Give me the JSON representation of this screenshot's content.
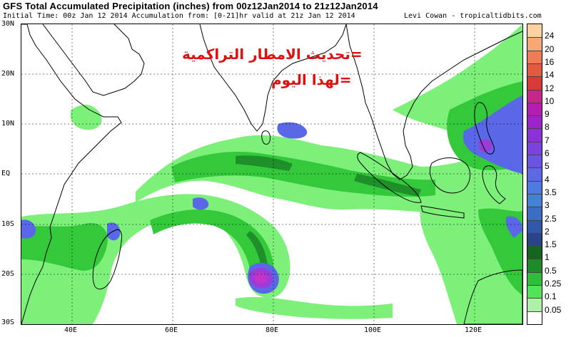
{
  "header": {
    "title": "GFS Total Accumulated Precipitation (inches) from 00z12Jan2014 to 21z12Jan2014",
    "subtitle": "Initial Time: 00z Jan 12 2014 Accumulation from: [0-21]hr valid at 21z Jan 12 2014",
    "credit": "Levi Cowan - tropicaltidbits.com"
  },
  "overlay_text": {
    "line1": "=تحديث الامطار التراكمية",
    "line2": "=لهذا اليوم"
  },
  "axes": {
    "lat_labels": [
      "30N",
      "20N",
      "10N",
      "EQ",
      "10S",
      "20S",
      "30S"
    ],
    "lon_labels": [
      "40E",
      "60E",
      "80E",
      "100E",
      "120E"
    ]
  },
  "colorbar": {
    "labels": [
      "24",
      "20",
      "16",
      "14",
      "12",
      "10",
      "9",
      "8",
      "7",
      "6",
      "5",
      "4",
      "3.5",
      "3",
      "2.5",
      "2",
      "1.5",
      "1",
      "0.5",
      "0.25",
      "0.1",
      "0.05"
    ],
    "colors": [
      "#fed2a0",
      "#f8a877",
      "#ee7d55",
      "#e45a3f",
      "#d83a39",
      "#c7268a",
      "#b21fb0",
      "#9c23c9",
      "#8a32d6",
      "#7a43dd",
      "#6b55e0",
      "#5d68e2",
      "#4f7ae0",
      "#4281d8",
      "#3a6ec4",
      "#3157a8",
      "#2a4489",
      "#14661f",
      "#1e8a2a",
      "#2fbd3a",
      "#52e356",
      "#aef0a8",
      "#ffffff"
    ]
  },
  "map_colors": {
    "light": "#7df07a",
    "mid": "#33c93b",
    "dark": "#1f8f2a",
    "blue": "#5a68e8",
    "purple": "#9a3cd8",
    "magenta": "#c233c8"
  }
}
